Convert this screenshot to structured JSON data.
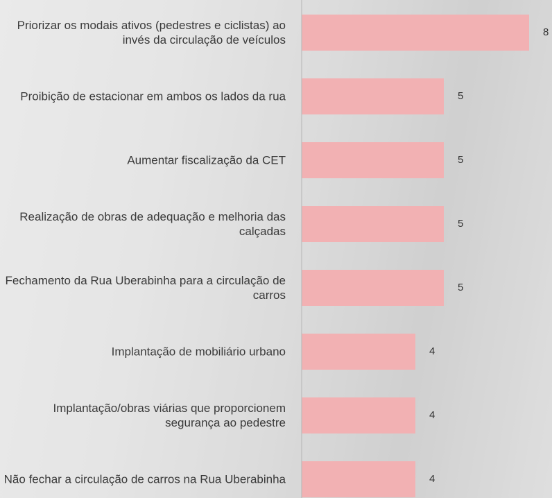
{
  "chart_data": {
    "type": "barh",
    "categories": [
      "Priorizar os modais ativos (pedestres e ciclistas) ao invés da circulação de veículos",
      "Proibição de estacionar em ambos os lados da rua",
      "Aumentar fiscalização da CET",
      "Realização de obras de adequação e melhoria das calçadas",
      "Fechamento da Rua Uberabinha para a circulação de carros",
      "Implantação de mobiliário urbano",
      "Implantação/obras viárias que proporcionem segurança ao pedestre",
      "Não fechar a circulação de carros na Rua Uberabinha"
    ],
    "values": [
      8,
      5,
      5,
      5,
      5,
      4,
      4,
      4
    ],
    "color": "#f2b1b3",
    "xlim": [
      0,
      8
    ]
  }
}
